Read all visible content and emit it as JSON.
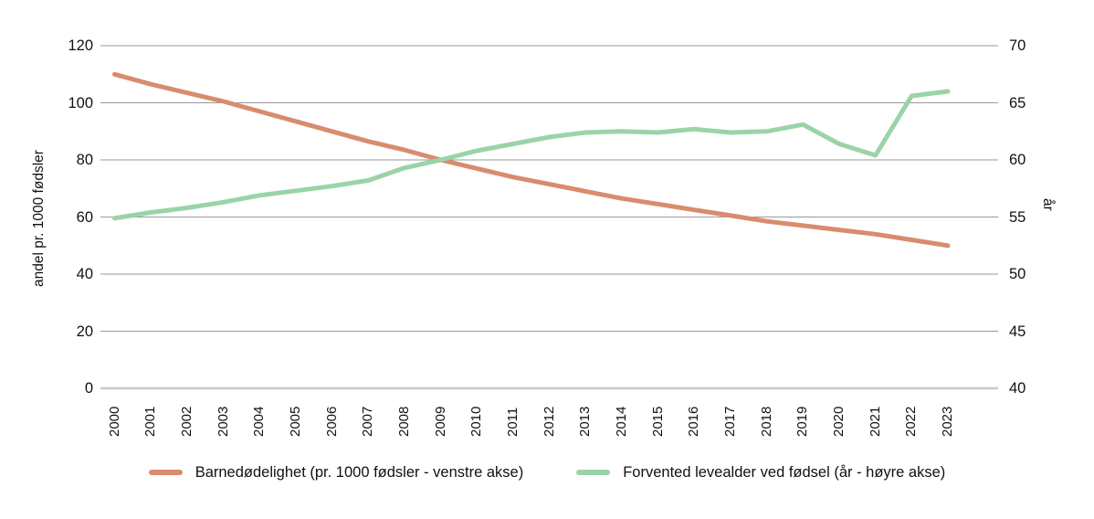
{
  "chart_data": {
    "type": "line",
    "title": "",
    "x_labels": [
      "2000",
      "2001",
      "2002",
      "2003",
      "2004",
      "2005",
      "2006",
      "2007",
      "2008",
      "2009",
      "2010",
      "2011",
      "2012",
      "2013",
      "2014",
      "2015",
      "2016",
      "2017",
      "2018",
      "2019",
      "2020",
      "2021",
      "2022",
      "2023"
    ],
    "series": [
      {
        "name": "Barnedødelighet (pr. 1000 fødsler - venstre akse)",
        "axis": "left",
        "color": "#D88C6E",
        "values": [
          110,
          106.5,
          103.5,
          100.5,
          97,
          93.5,
          90,
          86.5,
          83.5,
          80,
          77,
          74,
          71.5,
          69,
          66.5,
          64.5,
          62.5,
          60.5,
          58.5,
          57,
          55.5,
          54,
          52,
          50
        ]
      },
      {
        "name": "Forvented levealder ved fødsel (år - høyre akse)",
        "axis": "right",
        "color": "#9BD3A9",
        "values": [
          54.9,
          55.4,
          55.8,
          56.3,
          56.9,
          57.3,
          57.7,
          58.2,
          59.3,
          60,
          60.8,
          61.4,
          62,
          62.4,
          62.5,
          62.4,
          62.7,
          62.4,
          62.5,
          63.1,
          61.4,
          60.4,
          65.6,
          66
        ]
      }
    ],
    "left_axis": {
      "label": "andel pr. 1000 fødsler",
      "ticks": [
        0,
        20,
        40,
        60,
        80,
        100,
        120
      ],
      "range": [
        0,
        120
      ]
    },
    "right_axis": {
      "label": "år",
      "ticks": [
        40,
        45,
        50,
        55,
        60,
        65,
        70
      ],
      "range": [
        40,
        70
      ]
    },
    "grid": true,
    "legend_position": "bottom"
  },
  "colors": {
    "gridline": "#999999",
    "baseline": "#C9C9C9",
    "text": "#111111",
    "background": "#ffffff"
  }
}
